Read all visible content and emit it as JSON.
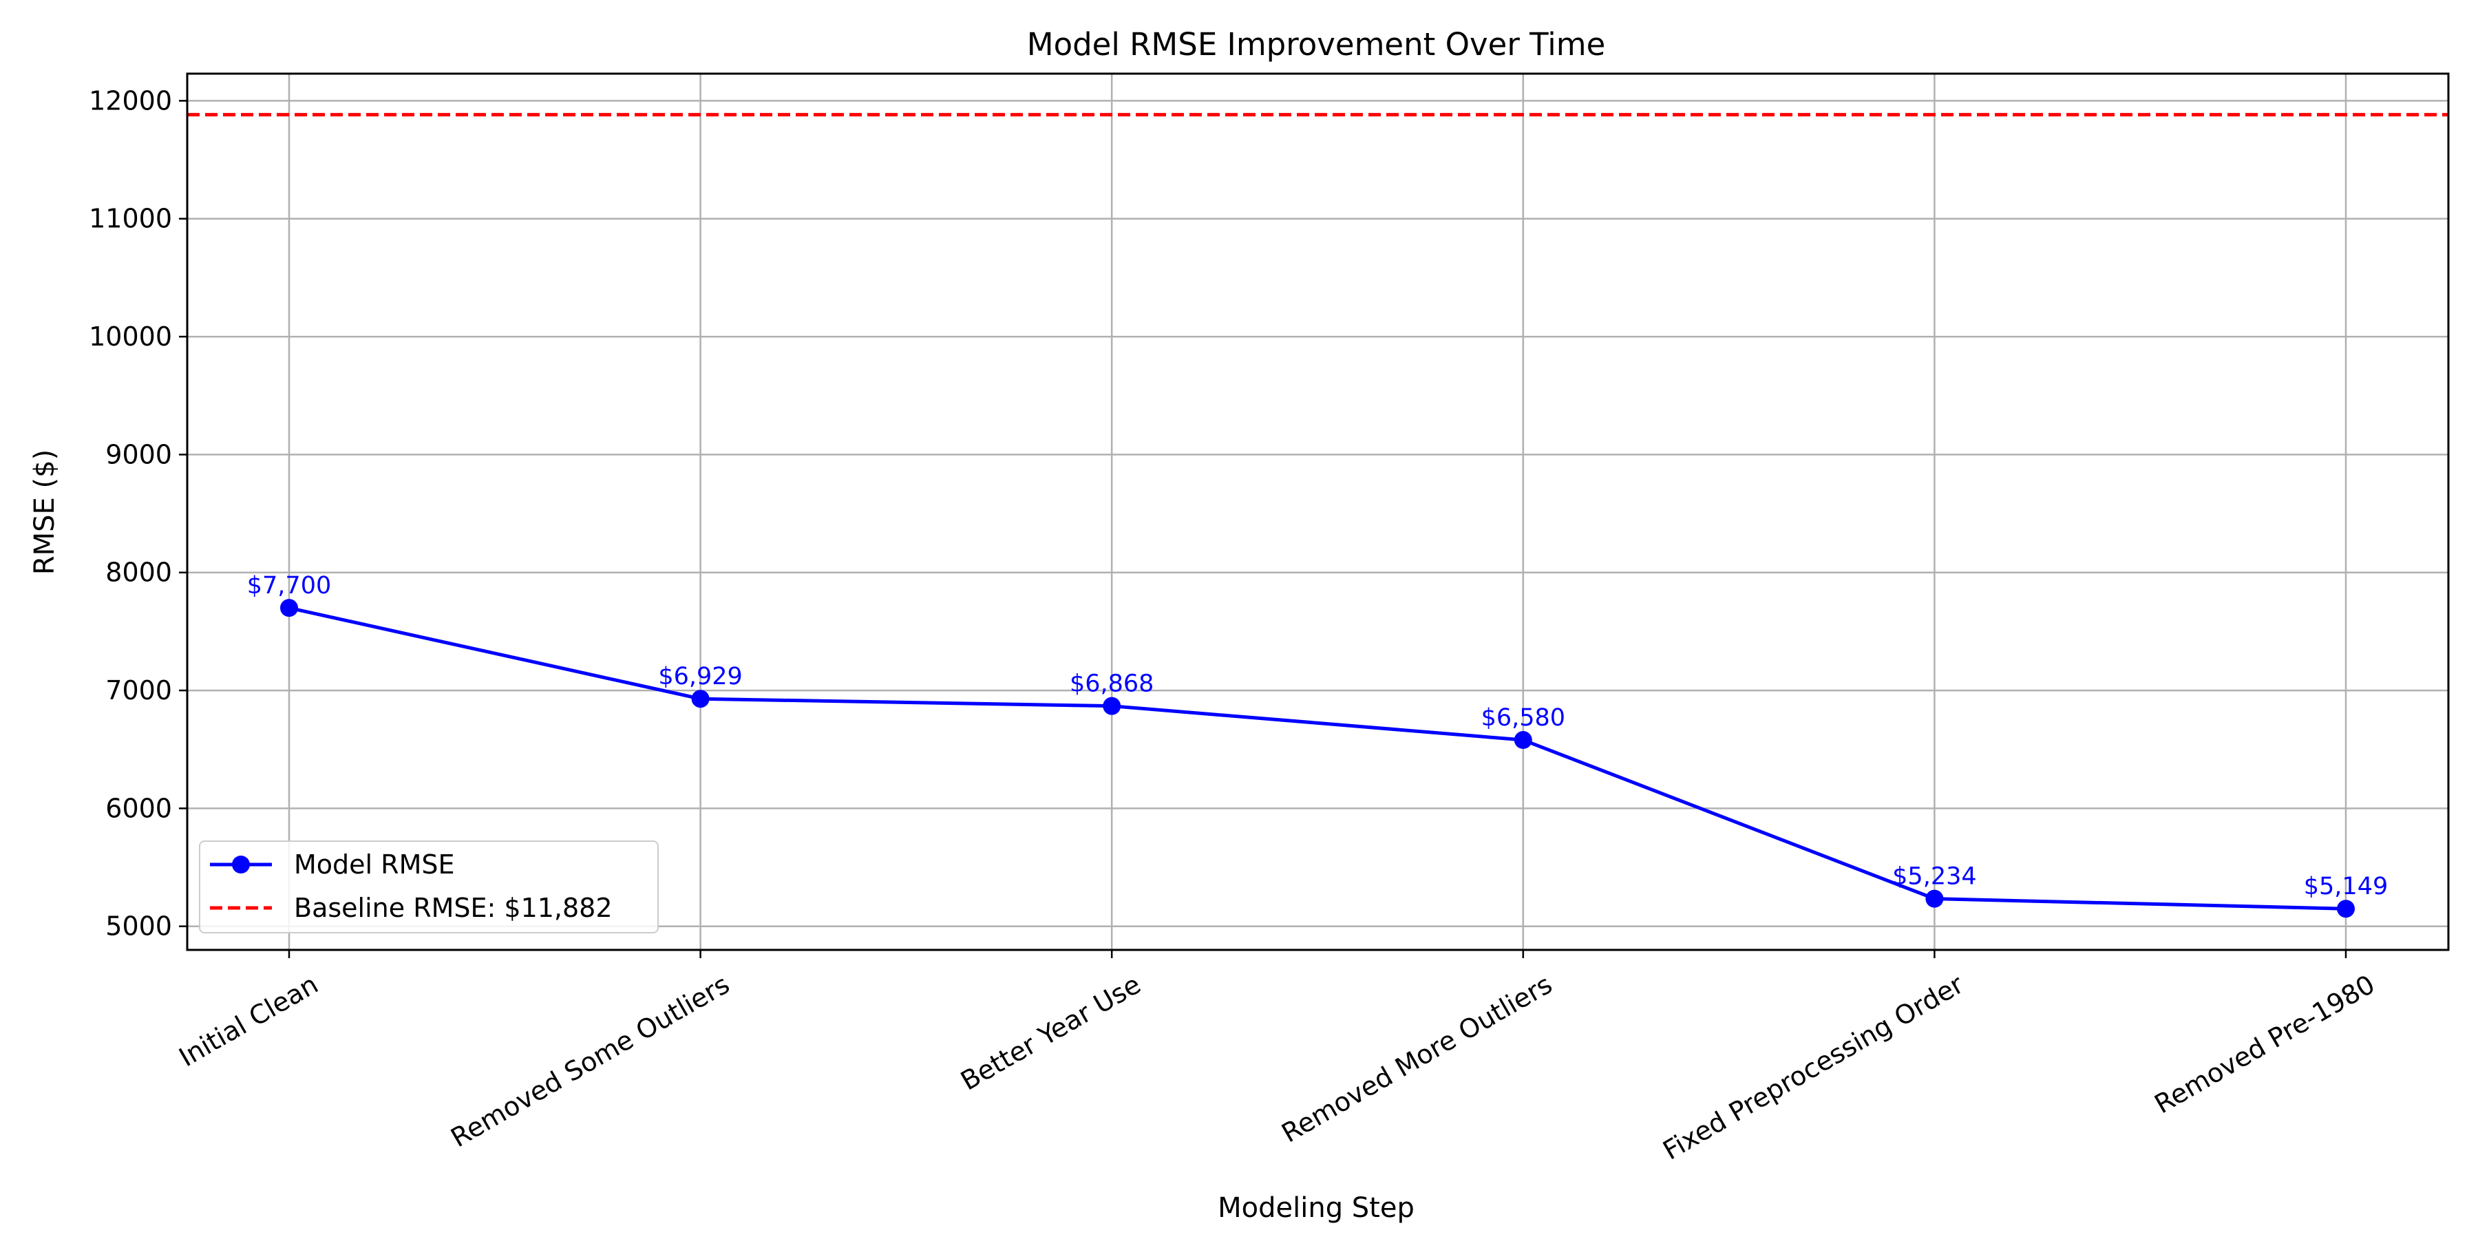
{
  "chart_data": {
    "type": "line",
    "title": "Model RMSE Improvement Over Time",
    "xlabel": "Modeling Step",
    "ylabel": "RMSE ($)",
    "categories": [
      "Initial Clean",
      "Removed Some Outliers",
      "Better Year Use",
      "Removed More Outliers",
      "Fixed Preprocessing Order",
      "Removed Pre-1980"
    ],
    "series": [
      {
        "name": "Model RMSE",
        "values": [
          7700,
          6929,
          6868,
          6580,
          5234,
          5149
        ],
        "labels": [
          "$7,700",
          "$6,929",
          "$6,868",
          "$6,580",
          "$5,234",
          "$5,149"
        ],
        "color": "#0000ff",
        "marker": "circle"
      }
    ],
    "baseline": {
      "name": "Baseline RMSE: $11,882",
      "value": 11882,
      "color": "#ff0000",
      "style": "dashed"
    },
    "ylim": [
      4800,
      12230
    ],
    "yticks": [
      5000,
      6000,
      7000,
      8000,
      9000,
      10000,
      11000,
      12000
    ],
    "grid": true,
    "legend": "lower-left"
  }
}
